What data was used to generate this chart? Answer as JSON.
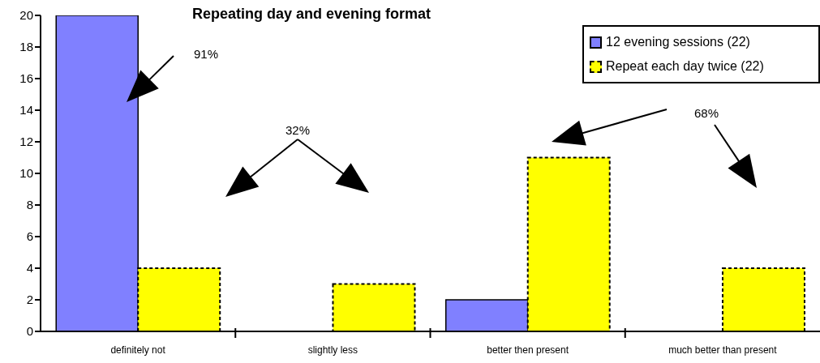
{
  "chart_data": {
    "type": "bar",
    "title": "Repeating day and evening format",
    "categories": [
      "definitely not",
      "slightly less",
      "better then present",
      "much better than present"
    ],
    "series": [
      {
        "name": "12 evening sessions (22)",
        "color": "#8080ff",
        "values": [
          20,
          0,
          2,
          0
        ]
      },
      {
        "name": "Repeat each day twice (22)",
        "color": "#ffff00",
        "values": [
          4,
          3,
          11,
          4
        ]
      }
    ],
    "ylim": [
      0,
      20
    ],
    "yticks": [
      0,
      2,
      4,
      6,
      8,
      10,
      12,
      14,
      16,
      18,
      20
    ],
    "legend": "top right",
    "annotations": [
      "91%",
      "32%",
      "68%"
    ]
  }
}
